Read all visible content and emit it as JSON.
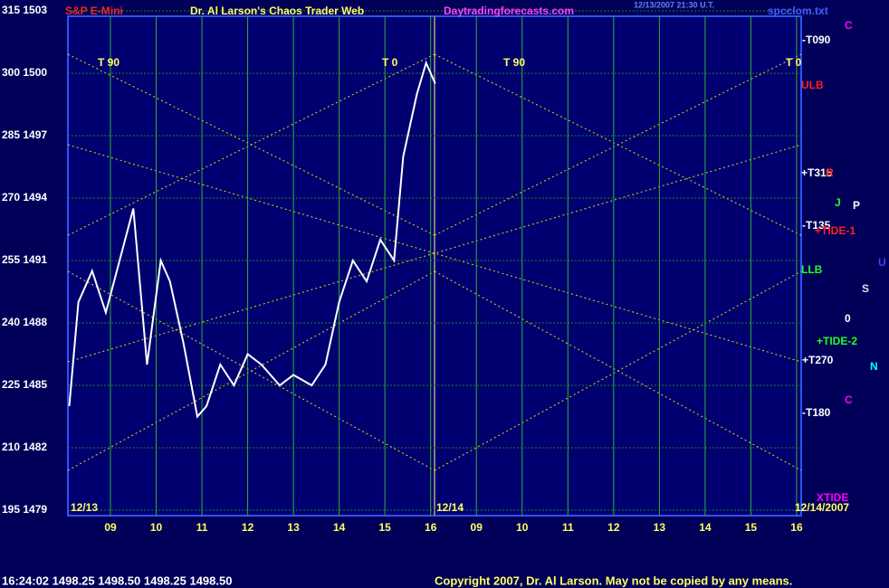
{
  "chart_data": {
    "type": "line",
    "title": "S&P E-Mini",
    "title_color": "#ff2020",
    "x": [
      8.1,
      8.3,
      8.6,
      8.9,
      9.2,
      9.5,
      9.8,
      10.1,
      10.3,
      10.6,
      10.9,
      11.1,
      11.4,
      11.7,
      12.0,
      12.3,
      12.7,
      13.0,
      13.4,
      13.7,
      14.0,
      14.3,
      14.6,
      14.9,
      15.2,
      15.4,
      15.7,
      15.9,
      16.1
    ],
    "series": [
      {
        "color": "#ffffff",
        "values": [
          1484,
          1489,
          1490.5,
          1488.5,
          1491,
          1493.5,
          1486,
          1491,
          1490,
          1487,
          1483.5,
          1484,
          1486,
          1485,
          1486.5,
          1486,
          1485,
          1485.5,
          1485,
          1486,
          1489,
          1491,
          1490,
          1492,
          1491,
          1496,
          1499,
          1500.5,
          1499.5
        ]
      }
    ],
    "xlim": [
      8.07,
      24.1
    ],
    "xticks": [
      {
        "value": 9,
        "label": "09"
      },
      10,
      11,
      12,
      13,
      14,
      15,
      16,
      {
        "value": 17,
        "label": "09"
      },
      {
        "value": 18,
        "label": "10"
      },
      {
        "value": 19,
        "label": "11"
      },
      {
        "value": 20,
        "label": "12"
      },
      {
        "value": 21,
        "label": "13"
      },
      {
        "value": 22,
        "label": "14"
      },
      {
        "value": 23,
        "label": "15"
      },
      {
        "value": 24,
        "label": "16"
      }
    ],
    "ylim": [
      1479,
      1503
    ],
    "yticks": [
      {
        "value": 1503,
        "label": "315 1503"
      },
      {
        "value": 1500,
        "label": "300 1500"
      },
      {
        "value": 1497,
        "label": "285 1497"
      },
      {
        "value": 1494,
        "label": "270 1494"
      },
      {
        "value": 1491,
        "label": "255 1491"
      },
      {
        "value": 1488,
        "label": "240 1488"
      },
      {
        "value": 1485,
        "label": "225 1485"
      },
      {
        "value": 1482,
        "label": "210 1482"
      },
      {
        "value": 1479,
        "label": "195 1479"
      }
    ],
    "grid": true,
    "annotations": [
      {
        "text": "Dr. Al Larson's Chaos Trader Web",
        "color": "#ffff60"
      },
      {
        "text": "Daytradingforecasts.com",
        "color": "#ff40ff"
      },
      {
        "text": "12/13/2007 21:30 U.T.",
        "color": "#6080ff"
      },
      {
        "text": "spcclom.txt",
        "color": "#4060ff"
      },
      {
        "text": "C",
        "color": "#ff00ff"
      },
      {
        "text": "-T090",
        "color": "#ffffff"
      },
      {
        "text": "ULB",
        "color": "#ff2020"
      },
      {
        "text": "+T315",
        "color": "#ffffff"
      },
      {
        "text": "R",
        "color": "#ff2020"
      },
      {
        "text": "J",
        "color": "#20ff20"
      },
      {
        "text": "P",
        "color": "#ffffff"
      },
      {
        "text": "-T135",
        "color": "#ffffff"
      },
      {
        "text": "+TIDE-1",
        "color": "#ff2020"
      },
      {
        "text": "LLB",
        "color": "#20ff20"
      },
      {
        "text": "U",
        "color": "#4040ff"
      },
      {
        "text": "S",
        "color": "#e0e0e0"
      },
      {
        "text": "0",
        "color": "#ffffff"
      },
      {
        "text": "+TIDE-2",
        "color": "#20ff20"
      },
      {
        "text": "+T270",
        "color": "#ffffff"
      },
      {
        "text": "N",
        "color": "#00ffff"
      },
      {
        "text": "C",
        "color": "#ff00ff"
      },
      {
        "text": "-T180",
        "color": "#ffffff"
      },
      {
        "text": "XTIDE",
        "color": "#ff00ff"
      },
      {
        "text": "12/13",
        "color": "#ffff60"
      },
      {
        "text": "12/14",
        "color": "#ffff60"
      },
      {
        "text": "12/14/2007",
        "color": "#ffff60"
      },
      {
        "text": "T 90",
        "color": "#ffff60"
      },
      {
        "text": "T 0",
        "color": "#ffff60"
      },
      {
        "text": "T 90",
        "color": "#ffff60"
      },
      {
        "text": "T 0",
        "color": "#ffff60"
      },
      {
        "text": "16:24:02 1498.25 1498.50 1498.25 1498.50",
        "color": "#ffffff"
      },
      {
        "text": "Copyright 2007, Dr. Al Larson. May not be copied by any means.",
        "color": "#ffff60"
      }
    ]
  }
}
